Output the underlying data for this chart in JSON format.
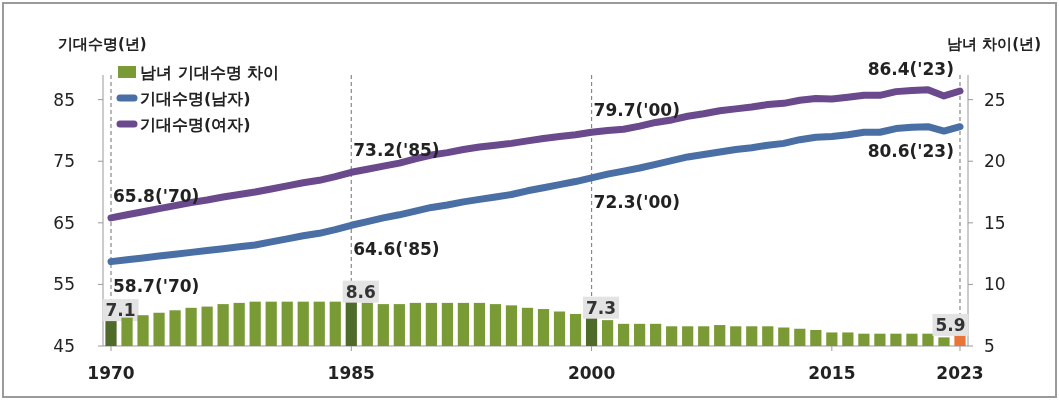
{
  "chart_data": {
    "type": "line",
    "ylabel": "기대수명(년)",
    "y2label": "남녀 차이(년)",
    "x": [
      1970,
      1971,
      1972,
      1973,
      1974,
      1975,
      1976,
      1977,
      1978,
      1979,
      1980,
      1981,
      1982,
      1983,
      1984,
      1985,
      1986,
      1987,
      1988,
      1989,
      1990,
      1991,
      1992,
      1993,
      1994,
      1995,
      1996,
      1997,
      1998,
      1999,
      2000,
      2001,
      2002,
      2003,
      2004,
      2005,
      2006,
      2007,
      2008,
      2009,
      2010,
      2011,
      2012,
      2013,
      2014,
      2015,
      2016,
      2017,
      2018,
      2019,
      2020,
      2021,
      2022,
      2023
    ],
    "xlim": [
      1969.5,
      2023.5
    ],
    "xticks": [
      1970,
      1985,
      2000,
      2015,
      2023
    ],
    "ylim": [
      45,
      89
    ],
    "yticks": [
      45,
      55,
      65,
      75,
      85
    ],
    "y2lim": [
      5,
      27
    ],
    "y2ticks": [
      5,
      10,
      15,
      20,
      25
    ],
    "legend": "top left",
    "series": [
      {
        "name": "남녀 기대수명 차이",
        "type": "bar",
        "axis": "y2",
        "color": "#7a9a35",
        "colors": [
          "#4f6b2a",
          "#7a9a35",
          "#7a9a35",
          "#7a9a35",
          "#7a9a35",
          "#7a9a35",
          "#7a9a35",
          "#7a9a35",
          "#7a9a35",
          "#7a9a35",
          "#7a9a35",
          "#7a9a35",
          "#7a9a35",
          "#7a9a35",
          "#7a9a35",
          "#4f6b2a",
          "#7a9a35",
          "#7a9a35",
          "#7a9a35",
          "#7a9a35",
          "#7a9a35",
          "#7a9a35",
          "#7a9a35",
          "#7a9a35",
          "#7a9a35",
          "#7a9a35",
          "#7a9a35",
          "#7a9a35",
          "#7a9a35",
          "#7a9a35",
          "#4f6b2a",
          "#7a9a35",
          "#7a9a35",
          "#7a9a35",
          "#7a9a35",
          "#7a9a35",
          "#7a9a35",
          "#7a9a35",
          "#7a9a35",
          "#7a9a35",
          "#7a9a35",
          "#7a9a35",
          "#7a9a35",
          "#7a9a35",
          "#7a9a35",
          "#7a9a35",
          "#7a9a35",
          "#7a9a35",
          "#7a9a35",
          "#7a9a35",
          "#7a9a35",
          "#7a9a35",
          "#7a9a35",
          "#e9743a"
        ],
        "values": [
          7.1,
          7.3,
          7.5,
          7.7,
          7.9,
          8.1,
          8.2,
          8.4,
          8.5,
          8.6,
          8.6,
          8.6,
          8.6,
          8.6,
          8.6,
          8.6,
          8.5,
          8.4,
          8.4,
          8.5,
          8.5,
          8.5,
          8.5,
          8.5,
          8.4,
          8.3,
          8.1,
          8.0,
          7.8,
          7.6,
          7.3,
          7.1,
          6.8,
          6.8,
          6.8,
          6.6,
          6.6,
          6.6,
          6.7,
          6.6,
          6.6,
          6.6,
          6.5,
          6.4,
          6.3,
          6.1,
          6.1,
          6.0,
          6.0,
          6.0,
          6.0,
          6.0,
          5.7,
          5.9
        ],
        "value_labels": [
          "7.1",
          null,
          null,
          null,
          null,
          null,
          null,
          null,
          null,
          null,
          null,
          null,
          null,
          null,
          null,
          "8.6",
          null,
          null,
          null,
          null,
          null,
          null,
          null,
          null,
          null,
          null,
          null,
          null,
          null,
          null,
          "7.3",
          null,
          null,
          null,
          null,
          null,
          null,
          null,
          null,
          null,
          null,
          null,
          null,
          null,
          null,
          null,
          null,
          null,
          null,
          null,
          null,
          null,
          null,
          "5.9"
        ]
      },
      {
        "name": "기대수명(남자)",
        "color": "#4a6fa5",
        "values": [
          58.7,
          59.0,
          59.3,
          59.6,
          59.9,
          60.2,
          60.5,
          60.8,
          61.1,
          61.4,
          61.9,
          62.4,
          62.9,
          63.3,
          63.9,
          64.6,
          65.2,
          65.8,
          66.3,
          66.9,
          67.5,
          67.9,
          68.4,
          68.8,
          69.2,
          69.6,
          70.2,
          70.7,
          71.2,
          71.7,
          72.3,
          72.9,
          73.4,
          73.9,
          74.5,
          75.1,
          75.7,
          76.1,
          76.5,
          76.9,
          77.2,
          77.6,
          77.9,
          78.5,
          78.9,
          79.0,
          79.3,
          79.7,
          79.7,
          80.3,
          80.5,
          80.6,
          79.9,
          80.6
        ]
      },
      {
        "name": "기대수명(여자)",
        "color": "#6a4a8c",
        "values": [
          65.8,
          66.3,
          66.8,
          67.3,
          67.8,
          68.3,
          68.7,
          69.2,
          69.6,
          70.0,
          70.5,
          71.0,
          71.5,
          71.9,
          72.5,
          73.2,
          73.7,
          74.2,
          74.7,
          75.4,
          76.0,
          76.4,
          76.9,
          77.3,
          77.6,
          77.9,
          78.3,
          78.7,
          79.0,
          79.3,
          79.7,
          80.0,
          80.2,
          80.7,
          81.3,
          81.7,
          82.3,
          82.7,
          83.2,
          83.5,
          83.8,
          84.2,
          84.4,
          84.9,
          85.2,
          85.1,
          85.4,
          85.7,
          85.7,
          86.3,
          86.5,
          86.6,
          85.6,
          86.4
        ]
      }
    ],
    "ref_lines": [
      {
        "axis": "x",
        "value": 1970,
        "line_style": "dashed",
        "color": "#888888"
      },
      {
        "axis": "x",
        "value": 1985,
        "line_style": "dashed",
        "color": "#888888"
      },
      {
        "axis": "x",
        "value": 2000,
        "line_style": "dashed",
        "color": "#888888"
      },
      {
        "axis": "x",
        "value": 2023,
        "line_style": "dashed",
        "color": "#888888"
      }
    ],
    "annotations": [
      {
        "text": "65.8('70)",
        "x": 1970,
        "y": 65.8
      },
      {
        "text": "58.7('70)",
        "x": 1970,
        "y": 58.7
      },
      {
        "text": "73.2('85)",
        "x": 1985,
        "y": 73.2
      },
      {
        "text": "64.6('85)",
        "x": 1985,
        "y": 64.6
      },
      {
        "text": "79.7('00)",
        "x": 2000,
        "y": 79.7
      },
      {
        "text": "72.3('00)",
        "x": 2000,
        "y": 72.3
      },
      {
        "text": "86.4('23)",
        "x": 2023,
        "y": 86.4
      },
      {
        "text": "80.6('23)",
        "x": 2023,
        "y": 80.6
      }
    ]
  }
}
